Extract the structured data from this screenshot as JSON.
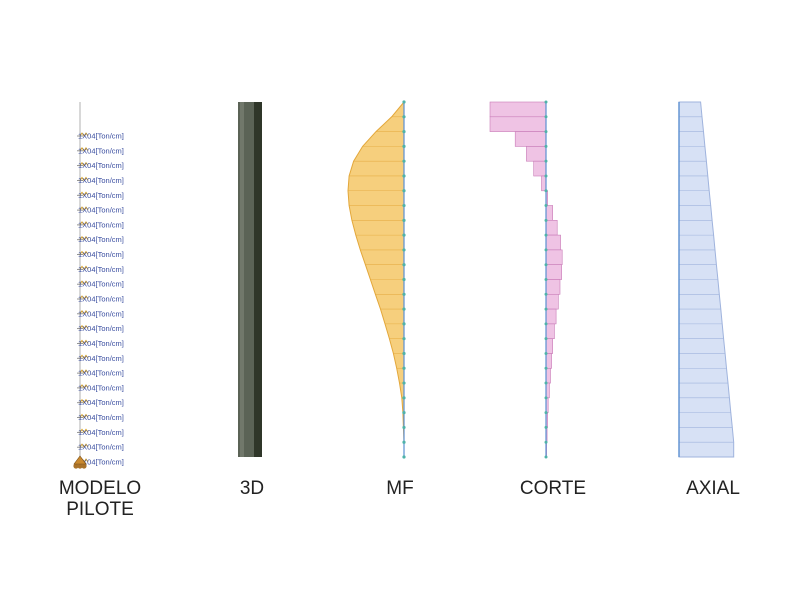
{
  "panels": [
    {
      "id": "modelo",
      "label_lines": [
        "MODELO",
        "PILOTE"
      ]
    },
    {
      "id": "3d",
      "label_lines": [
        "3D"
      ]
    },
    {
      "id": "mf",
      "label_lines": [
        "MF"
      ]
    },
    {
      "id": "corte",
      "label_lines": [
        "CORTE"
      ]
    },
    {
      "id": "axial",
      "label_lines": [
        "AXIAL"
      ]
    }
  ],
  "spring_label": "1X04",
  "spring_unit": "[Ton/cm]",
  "spring_count": 23,
  "colors": {
    "pile_dark": "#3f4a3a",
    "pile_mid": "#6a7266",
    "moment_fill": "#f6cf7d",
    "moment_stroke": "#e3a73a",
    "shear_fill": "#efc3e4",
    "shear_stroke": "#c87bb7",
    "axial_fill": "#d7e1f5",
    "axial_stroke": "#9fb3dd",
    "node": "#4fb3a9",
    "axis": "#5b8fd1"
  },
  "diagram_data": {
    "segments": 24,
    "moment": [
      0,
      0.22,
      0.5,
      0.74,
      0.9,
      0.98,
      1.0,
      0.98,
      0.93,
      0.86,
      0.78,
      0.69,
      0.6,
      0.51,
      0.42,
      0.34,
      0.26,
      0.19,
      0.13,
      0.08,
      0.04,
      0.02,
      0.01,
      0.0,
      0.0
    ],
    "shear": [
      -1.0,
      -1.0,
      -0.55,
      -0.35,
      -0.22,
      -0.08,
      0.03,
      0.12,
      0.2,
      0.26,
      0.29,
      0.28,
      0.25,
      0.22,
      0.18,
      0.15,
      0.12,
      0.1,
      0.08,
      0.06,
      0.04,
      0.03,
      0.02,
      0.01
    ],
    "axial": [
      0.45,
      0.48,
      0.51,
      0.54,
      0.57,
      0.6,
      0.63,
      0.66,
      0.69,
      0.72,
      0.75,
      0.78,
      0.81,
      0.84,
      0.87,
      0.9,
      0.93,
      0.96,
      0.99,
      1.02,
      1.05,
      1.08,
      1.11,
      1.14
    ]
  }
}
